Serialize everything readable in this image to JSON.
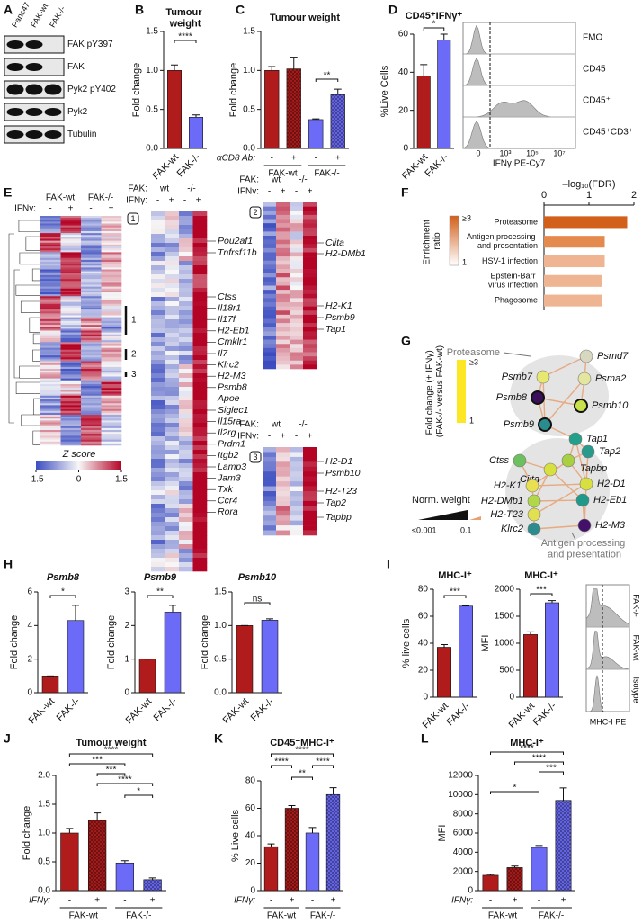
{
  "panel_labels": [
    "A",
    "B",
    "C",
    "D",
    "E",
    "F",
    "G",
    "H",
    "I",
    "J",
    "K",
    "L"
  ],
  "blot": {
    "lanes": [
      "Panc47",
      "FAK-wt",
      "FAK-/-"
    ],
    "bands": [
      "FAK pY397",
      "FAK",
      "Pyk2 pY402",
      "Pyk2",
      "Tubulin"
    ]
  },
  "chart_data": [
    {
      "type": "bar",
      "title": "Tumour weight",
      "ylabel": "Fold change",
      "categories": [
        "FAK-wt",
        "FAK-/-"
      ],
      "values": [
        1.0,
        0.4
      ],
      "errors": [
        0.07,
        0.03
      ],
      "colors": [
        "#b01c1c",
        "#6b6bf7"
      ],
      "ylim": [
        0,
        1.5
      ],
      "yticks": [
        {
          "value": 0,
          "label": "0.0"
        },
        0.5,
        {
          "value": 1,
          "label": "1.0"
        },
        1.5
      ],
      "significance": [
        "****"
      ]
    },
    {
      "type": "bar",
      "title": "Tumour weight",
      "ylabel": "Fold change",
      "categories": [
        "-",
        "+",
        "-",
        "+"
      ],
      "groups": [
        "FAK-wt",
        "FAK-/-"
      ],
      "condition_label": "αCD8 Ab:",
      "values": [
        1.0,
        1.02,
        0.37,
        0.69
      ],
      "errors": [
        0.05,
        0.15,
        0.01,
        0.07
      ],
      "colors": [
        "#b01c1c",
        "#b01c1c",
        "#6b6bf7",
        "#6b6bf7"
      ],
      "patterns": [
        "solid",
        "hatched",
        "solid",
        "hatched"
      ],
      "ylim": [
        0,
        1.5
      ],
      "yticks": [
        {
          "value": 0,
          "label": "0.0"
        },
        0.5,
        {
          "value": 1,
          "label": "1.0"
        },
        1.5
      ],
      "significance": [
        "**"
      ]
    },
    {
      "type": "bar",
      "title": "CD45⁺IFNγ⁺",
      "ylabel": "%Live Cells",
      "categories": [
        "FAK-wt",
        "FAK-/-"
      ],
      "values": [
        38,
        57
      ],
      "errors": [
        6,
        3
      ],
      "colors": [
        "#b01c1c",
        "#6b6bf7"
      ],
      "ylim": [
        0,
        60
      ],
      "yticks": [
        0,
        20,
        40,
        60
      ],
      "significance": [
        "*"
      ]
    },
    {
      "type": "hbar",
      "title": "–log₁₀(FDR)",
      "categories": [
        "Proteasome",
        "Antigen processing and presentation",
        "HSV-1 infection",
        "Epstein-Barr virus infection",
        "Phagosome"
      ],
      "values": [
        1.85,
        1.35,
        1.35,
        1.3,
        1.3
      ],
      "colors": [
        "#d2601a",
        "#e58a4e",
        "#efb592",
        "#efb592",
        "#efb592"
      ],
      "xlim": [
        0,
        2
      ],
      "xticks": [
        0,
        1,
        2
      ],
      "legend_title": "Enrichment ratio",
      "legend_ticks": [
        "≥3",
        "1"
      ],
      "legend_colors": [
        "#d2601a",
        "#ffffff"
      ]
    },
    {
      "type": "bar",
      "title": "Psmb8",
      "ylabel": "Fold change",
      "categories": [
        "FAK-wt",
        "FAK-/-"
      ],
      "values": [
        1,
        4.3
      ],
      "errors": [
        0,
        0.9
      ],
      "colors": [
        "#b01c1c",
        "#6b6bf7"
      ],
      "ylim": [
        0,
        6
      ],
      "yticks": [
        0,
        2,
        4,
        6
      ],
      "significance": [
        "*"
      ]
    },
    {
      "type": "bar",
      "title": "Psmb9",
      "ylabel": "Fold change",
      "categories": [
        "FAK-wt",
        "FAK-/-"
      ],
      "values": [
        1,
        2.4
      ],
      "errors": [
        0,
        0.2
      ],
      "colors": [
        "#b01c1c",
        "#6b6bf7"
      ],
      "ylim": [
        0,
        3
      ],
      "yticks": [
        0,
        1,
        2,
        3
      ],
      "significance": [
        "**"
      ]
    },
    {
      "type": "bar",
      "title": "Psmb10",
      "ylabel": "Fold change",
      "categories": [
        "FAK-wt",
        "FAK-/-"
      ],
      "values": [
        1.0,
        1.08
      ],
      "errors": [
        0,
        0.02
      ],
      "colors": [
        "#b01c1c",
        "#6b6bf7"
      ],
      "ylim": [
        0,
        1.5
      ],
      "yticks": [
        {
          "value": 0,
          "label": "0.0"
        },
        0.5,
        {
          "value": 1,
          "label": "1.0"
        },
        1.5
      ],
      "significance": [
        "ns"
      ]
    },
    {
      "type": "bar",
      "title": "MHC-I⁺",
      "ylabel": "% live cells",
      "categories": [
        "FAK-wt",
        "FAK-/-"
      ],
      "values": [
        37,
        67.5
      ],
      "errors": [
        2,
        0.5
      ],
      "colors": [
        "#b01c1c",
        "#6b6bf7"
      ],
      "ylim": [
        0,
        80
      ],
      "yticks": [
        0,
        20,
        40,
        60,
        80
      ],
      "significance": [
        "***"
      ]
    },
    {
      "type": "bar",
      "title": "MHC-I⁺",
      "ylabel": "MFI",
      "categories": [
        "FAK-wt",
        "FAK-/-"
      ],
      "values": [
        1160,
        1750
      ],
      "errors": [
        50,
        40
      ],
      "colors": [
        "#b01c1c",
        "#6b6bf7"
      ],
      "ylim": [
        0,
        2000
      ],
      "yticks": [
        0,
        500,
        1000,
        1500,
        2000
      ],
      "significance": [
        "***"
      ]
    },
    {
      "type": "bar",
      "title": "Tumour weight",
      "ylabel": "Fold change",
      "categories": [
        "-",
        "+",
        "-",
        "+"
      ],
      "groups": [
        "FAK-wt",
        "FAK-/-"
      ],
      "condition_label": "IFNγ:",
      "values": [
        1.0,
        1.22,
        0.48,
        0.19
      ],
      "errors": [
        0.08,
        0.13,
        0.04,
        0.03
      ],
      "colors": [
        "#b01c1c",
        "#b01c1c",
        "#6b6bf7",
        "#6b6bf7"
      ],
      "patterns": [
        "solid",
        "hatched",
        "solid",
        "hatched"
      ],
      "ylim": [
        0,
        2
      ],
      "yticks": [
        {
          "value": 0,
          "label": "0.0"
        },
        0.5,
        {
          "value": 1,
          "label": "1.0"
        },
        1.5,
        {
          "value": 2,
          "label": "2.0"
        }
      ],
      "significance": [
        "****",
        "***",
        "***",
        "****",
        "*"
      ]
    },
    {
      "type": "bar",
      "title": "CD45⁻MHC-I⁺",
      "ylabel": "% Live cells",
      "categories": [
        "-",
        "+",
        "-",
        "+"
      ],
      "groups": [
        "FAK-wt",
        "FAK-/-"
      ],
      "condition_label": "IFNγ:",
      "values": [
        32,
        60,
        42,
        70
      ],
      "errors": [
        2,
        2,
        4,
        5
      ],
      "colors": [
        "#b01c1c",
        "#b01c1c",
        "#6b6bf7",
        "#6b6bf7"
      ],
      "patterns": [
        "solid",
        "hatched",
        "solid",
        "hatched"
      ],
      "ylim": [
        0,
        80
      ],
      "yticks": [
        0,
        20,
        40,
        60,
        80
      ],
      "significance": [
        "****",
        "****",
        "****",
        "**"
      ]
    },
    {
      "type": "bar",
      "title": "MHC-I⁺",
      "ylabel": "MFI",
      "categories": [
        "-",
        "+",
        "-",
        "+"
      ],
      "groups": [
        "FAK-wt",
        "FAK-/-"
      ],
      "condition_label": "IFNγ:",
      "values": [
        1600,
        2400,
        4500,
        9400
      ],
      "errors": [
        100,
        150,
        200,
        1300
      ],
      "colors": [
        "#b01c1c",
        "#b01c1c",
        "#6b6bf7",
        "#6b6bf7"
      ],
      "patterns": [
        "solid",
        "hatched",
        "solid",
        "hatched"
      ],
      "ylim": [
        0,
        12000
      ],
      "yticks": [
        0,
        2000,
        4000,
        6000,
        8000,
        10000,
        12000
      ],
      "significance": [
        "****",
        "****",
        "***",
        "*"
      ]
    }
  ],
  "flow_d": {
    "rows": [
      "FMO",
      "CD45⁻",
      "CD45⁺",
      "CD45⁺CD3⁺"
    ],
    "xlabel": "IFNγ PE-Cy7",
    "xtick_labels": [
      "0",
      "10³",
      "10⁵",
      "10⁷"
    ]
  },
  "flow_i": {
    "rows": [
      "FAK-/-",
      "FAK-wt",
      "Isotype"
    ],
    "xlabel": "MHC-I PE"
  },
  "heatmap": {
    "header_groups": [
      "FAK-wt",
      "FAK-/-"
    ],
    "treatment_label": "IFNγ:",
    "treatment_levels": [
      "-",
      "+",
      "-",
      "+"
    ],
    "cluster_labels": [
      "1",
      "2",
      "3"
    ],
    "scale_title": "Z score",
    "scale_ticks": [
      -1.5,
      0,
      1.5
    ],
    "zoom_group_label": "FAK:",
    "zoom_groups": [
      "wt",
      "-/-"
    ],
    "clusters": [
      {
        "genes": [
          "Pou2af1",
          "Tnfrsf11b",
          "Ctss",
          "Il18r1",
          "Il17f",
          "H2-Eb1",
          "Cmklr1",
          "Il7",
          "Klrc2",
          "H2-M3",
          "Psmb8",
          "Apoe",
          "Siglec1",
          "Il15ra",
          "Il2rg",
          "Prdm1",
          "Itgb2",
          "Lamp3",
          "Jam3",
          "Txk",
          "Ccr4",
          "Rora"
        ]
      },
      {
        "genes": [
          "Ciita",
          "H2-DMb1",
          "H2-K1",
          "Psmb9",
          "Tap1"
        ]
      },
      {
        "genes": [
          "H2-D1",
          "Psmb10",
          "H2-T23",
          "Tap2",
          "Tapbp"
        ]
      }
    ]
  },
  "network": {
    "group_labels": [
      "Proteasome",
      "Antigen processing and presentation"
    ],
    "nodes": [
      {
        "label": "Psmd7",
        "color": "#d8d8c0"
      },
      {
        "label": "Psmb7",
        "color": "#e6e870"
      },
      {
        "label": "Psma2",
        "color": "#e4e6a0"
      },
      {
        "label": "Psmb8",
        "color": "#3b0f5a",
        "outline": true
      },
      {
        "label": "Psmb10",
        "color": "#c8e04a",
        "outline": true
      },
      {
        "label": "Psmb9",
        "color": "#2a8c8c",
        "outline": true
      },
      {
        "label": "Tap1",
        "color": "#22a08a"
      },
      {
        "label": "Tap2",
        "color": "#2a9a8c"
      },
      {
        "label": "Tapbp",
        "color": "#a8d040"
      },
      {
        "label": "Ctss",
        "color": "#6cc060"
      },
      {
        "label": "Ciita",
        "color": "#d8e040"
      },
      {
        "label": "H2-K1",
        "color": "#e8e050"
      },
      {
        "label": "H2-D1",
        "color": "#d8e040"
      },
      {
        "label": "H2-DMb1",
        "color": "#b0d848"
      },
      {
        "label": "H2-Eb1",
        "color": "#1f9a8a"
      },
      {
        "label": "H2-T23",
        "color": "#e0e050"
      },
      {
        "label": "Klrc2",
        "color": "#2a8c8c"
      },
      {
        "label": "H2-M3",
        "color": "#44116a"
      }
    ],
    "legend_title": "Fold change (+ IFNγ) (FAK-/- versus FAK-wt)",
    "legend_ticks": [
      "≥3",
      "1"
    ],
    "colormap": [
      "#fde725",
      "#35b779",
      "#31688e",
      "#440154"
    ],
    "weight_title": "Norm. weight",
    "weight_ticks": [
      "≤0.001",
      "0.1"
    ]
  }
}
